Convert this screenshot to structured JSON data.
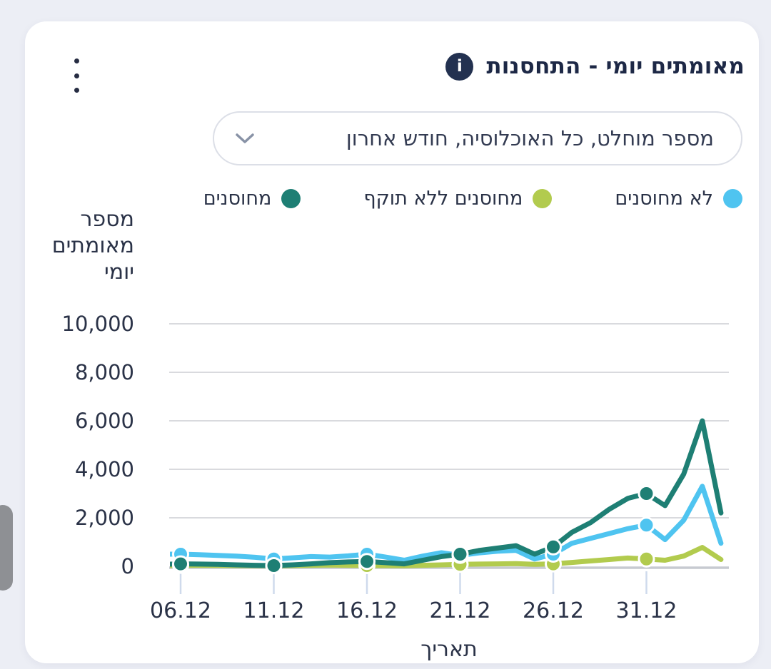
{
  "card": {
    "title": "מאומתים יומי - התחסנות",
    "info_icon": "i",
    "menu_icon": "kebab-menu-icon",
    "dropdown": {
      "value": "מספר מוחלט, כל האוכלוסיה, חודש אחרון",
      "chevron_icon": "chevron-down-icon"
    }
  },
  "chart_data": {
    "type": "line",
    "title": "מאומתים יומי - התחסנות",
    "xlabel": "תאריך",
    "ylabel": "מספר מאומתים יומי",
    "ylabel_lines": [
      "מספר",
      "מאומתים",
      "יומי"
    ],
    "ylim": [
      0,
      10000
    ],
    "grid": "horizontal",
    "legend_position": "top",
    "x_ticks": [
      "06.12",
      "11.12",
      "16.12",
      "21.12",
      "26.12",
      "31.12"
    ],
    "y_ticks": [
      "10,000",
      "8,000",
      "6,000",
      "4,000",
      "2,000",
      "0"
    ],
    "y_tick_values": [
      10000,
      8000,
      6000,
      4000,
      2000,
      0
    ],
    "x": [
      "05.12",
      "06.12",
      "07.12",
      "08.12",
      "09.12",
      "10.12",
      "11.12",
      "12.12",
      "13.12",
      "14.12",
      "15.12",
      "16.12",
      "17.12",
      "18.12",
      "19.12",
      "20.12",
      "21.12",
      "22.12",
      "23.12",
      "24.12",
      "25.12",
      "26.12",
      "27.12",
      "28.12",
      "29.12",
      "30.12",
      "31.12",
      "01.01",
      "02.01",
      "03.01",
      "04.01"
    ],
    "marker_dates": [
      "06.12",
      "11.12",
      "16.12",
      "21.12",
      "26.12",
      "31.12"
    ],
    "series": [
      {
        "name": "מחוסנים ללא תוקף",
        "color": "#b2cb4e",
        "values": [
          30,
          40,
          40,
          35,
          30,
          25,
          20,
          30,
          40,
          50,
          40,
          30,
          30,
          20,
          40,
          60,
          80,
          90,
          100,
          110,
          80,
          100,
          160,
          220,
          280,
          340,
          300,
          250,
          420,
          780,
          280
        ]
      },
      {
        "name": "לא מחוסנים",
        "color": "#4fc4f0",
        "values": [
          500,
          500,
          480,
          450,
          420,
          370,
          300,
          350,
          400,
          380,
          430,
          500,
          380,
          250,
          420,
          560,
          450,
          550,
          620,
          660,
          300,
          500,
          950,
          1150,
          1350,
          1550,
          1700,
          1100,
          1900,
          3300,
          950
        ]
      },
      {
        "name": "מחוסנים",
        "color": "#1e7f74",
        "values": [
          80,
          100,
          90,
          80,
          60,
          40,
          30,
          60,
          100,
          150,
          180,
          200,
          150,
          100,
          250,
          400,
          500,
          650,
          750,
          850,
          500,
          800,
          1400,
          1800,
          2350,
          2800,
          3000,
          2500,
          3800,
          6000,
          2200
        ]
      }
    ],
    "legend_order": [
      1,
      0,
      2
    ],
    "colors": {
      "grid": "#d9dade",
      "axis": "#c7cad1",
      "tick_mark": "#cfdaec",
      "text": "#2a3247",
      "title": "#1d2846",
      "background": "#ffffff"
    }
  }
}
